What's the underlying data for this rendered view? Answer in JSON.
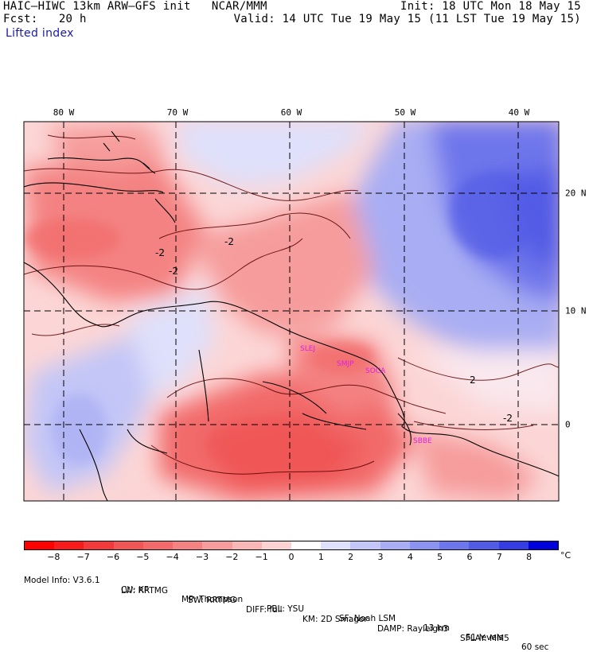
{
  "header": {
    "title": "HAIC–HIWC 13km ARW–GFS init   NCAR/MMM",
    "forecast": "Fcst:   20 h",
    "field": "Lifted index",
    "init": "Init: 18 UTC Mon 18 May 15",
    "valid": "Valid: 14 UTC Tue 19 May 15 (11 LST Tue 19 May 15)"
  },
  "map": {
    "lon_labels": [
      "80 W",
      "70 W",
      "60 W",
      "50 W",
      "40 W"
    ],
    "lat_labels": [
      "20 N",
      "10 N",
      "0"
    ],
    "contour_labels": [
      "-2",
      "-2",
      "-2",
      "2",
      "-2"
    ],
    "stations": [
      "SLEJ",
      "SMJP",
      "SOCA",
      "SBBE"
    ],
    "colors": {
      "neg_strong": "#f05a5a",
      "neg_mid": "#f89090",
      "neg_light": "#fcc0c0",
      "neutral": "#fde8e8",
      "pos_light": "#dcdcfa",
      "pos_mid": "#a0a8f4",
      "pos_strong": "#5a62e8",
      "station_color": "#e020e0"
    }
  },
  "colorbar": {
    "labels": [
      "−8",
      "−7",
      "−6",
      "−5",
      "−4",
      "−3",
      "−2",
      "−1",
      "0",
      "1",
      "2",
      "3",
      "4",
      "5",
      "6",
      "7",
      "8"
    ],
    "unit": "°C",
    "colors": [
      "#ff0000",
      "#f61c1c",
      "#f23a3a",
      "#f05656",
      "#f26a6a",
      "#f48282",
      "#f69c9c",
      "#f9b6b6",
      "#fcd2d2",
      "#ffffff",
      "#dfe0fb",
      "#c3c6f7",
      "#a9adf3",
      "#8c92ef",
      "#6e76eb",
      "#525be6",
      "#343ce2",
      "#0000dd"
    ]
  },
  "model_info": {
    "line1": [
      "Model Info: V3.6.1",
      "CU: KF",
      "MP: Thompson",
      "PBL: YSU",
      "SF: Noah LSM",
      "13 km",
      "51 levels",
      "60 sec"
    ],
    "line2": [
      "LW: RRTMG",
      "SW: RRTMG",
      "DIFF: full",
      "KM: 2D Smagor",
      "DAMP: Rayleigh3",
      "SFLAY: MM5"
    ]
  }
}
